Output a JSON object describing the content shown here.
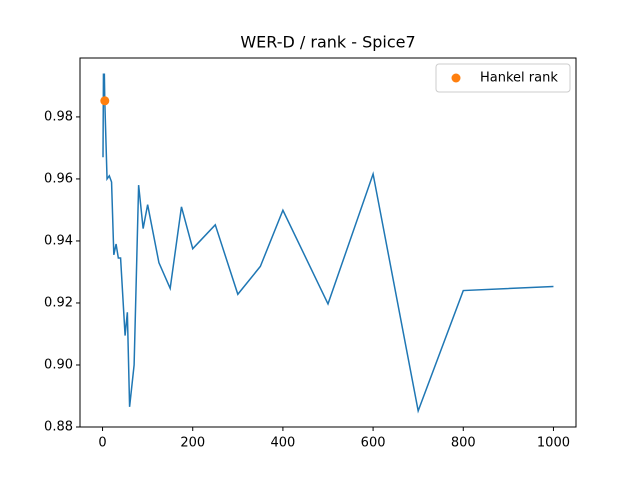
{
  "chart_data": {
    "type": "line",
    "title": "WER-D / rank - Spice7",
    "series": [
      {
        "color": "#1f77b4",
        "style": "line",
        "x": [
          1,
          2,
          3,
          4,
          5,
          10,
          15,
          20,
          25,
          30,
          35,
          40,
          50,
          55,
          60,
          70,
          80,
          90,
          100,
          125,
          150,
          175,
          200,
          250,
          300,
          350,
          400,
          500,
          600,
          700,
          800,
          1000
        ],
        "values": [
          0.967,
          0.994,
          0.985,
          0.994,
          0.985,
          0.96,
          0.961,
          0.959,
          0.9355,
          0.939,
          0.9345,
          0.9345,
          0.9095,
          0.917,
          0.8865,
          0.9,
          0.958,
          0.944,
          0.9517,
          0.933,
          0.9247,
          0.951,
          0.9375,
          0.9452,
          0.9228,
          0.9318,
          0.9499,
          0.9197,
          0.9616,
          0.8852,
          0.924,
          0.9253
        ]
      },
      {
        "name": "Hankel rank",
        "color": "#ff7f0e",
        "style": "marker",
        "x": [
          5
        ],
        "values": [
          0.9852
        ]
      }
    ],
    "xlim": [
      -50,
      1050
    ],
    "ylim": [
      0.88,
      0.999
    ],
    "xticks": [
      0,
      200,
      400,
      600,
      800,
      1000
    ],
    "yticks": [
      {
        "value": 0.88,
        "label": "0.88"
      },
      {
        "value": 0.9,
        "label": "0.90"
      },
      {
        "value": 0.92,
        "label": "0.92"
      },
      {
        "value": 0.94,
        "label": "0.94"
      },
      {
        "value": 0.96,
        "label": "0.96"
      },
      {
        "value": 0.98,
        "label": "0.98"
      }
    ],
    "legend": "upper right"
  }
}
